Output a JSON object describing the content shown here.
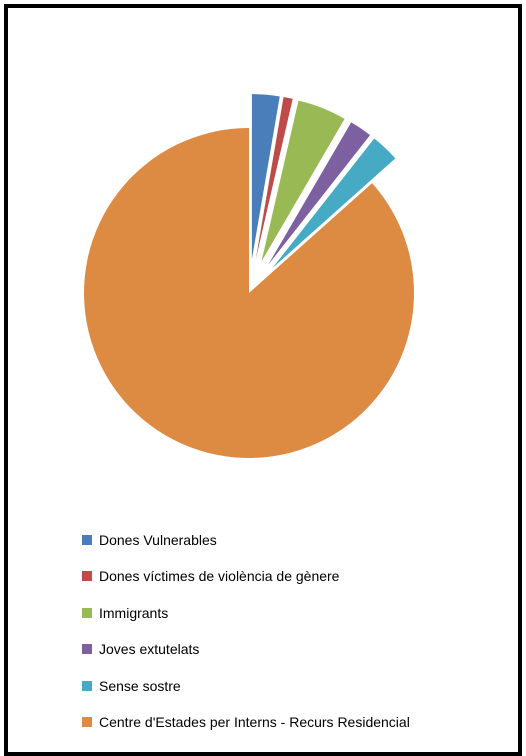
{
  "chart_data": {
    "type": "pie",
    "exploded": true,
    "legend_position": "bottom",
    "categories": [
      "Dones Vulnerables",
      "Dones víctimes de violència de gènere",
      "Immigrants",
      "Joves extutelats",
      "Sense sostre",
      "Centre d'Estades per Interns - Recurs Residencial"
    ],
    "values": [
      2.7,
      0.9,
      4.8,
      2.2,
      2.8,
      86.6
    ],
    "colors": [
      "#4a7ebb",
      "#be4b48",
      "#98b954",
      "#7d60a0",
      "#46aac5",
      "#dd8a43"
    ],
    "value_unit": "percent"
  }
}
